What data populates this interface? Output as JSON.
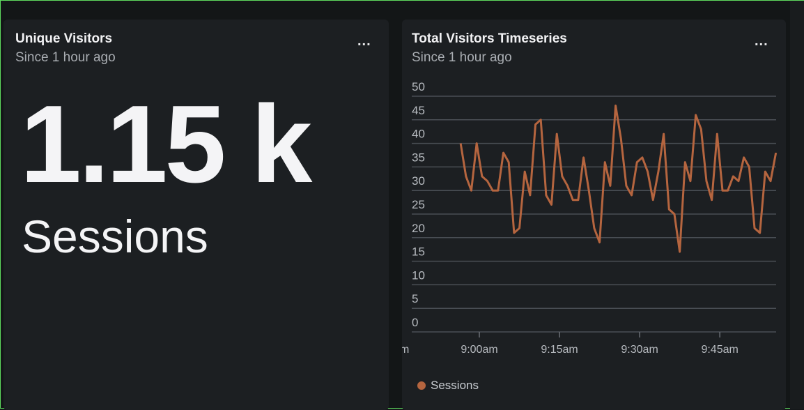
{
  "widgets": [
    {
      "title": "Unique Visitors",
      "subtitle": "Since 1 hour ago",
      "value": "1.15 k",
      "unit": "Sessions",
      "menu": "..."
    },
    {
      "title": "Total Visitors Timeseries",
      "subtitle": "Since 1 hour ago",
      "menu": "..."
    }
  ],
  "chart_data": {
    "type": "line",
    "title": "Total Visitors Timeseries",
    "ylim": [
      0,
      50
    ],
    "yticks": [
      "0",
      "5",
      "10",
      "15",
      "20",
      "25",
      "30",
      "35",
      "40",
      "45",
      "50"
    ],
    "xticks": [
      {
        "label": "m",
        "minute": -14
      },
      {
        "label": "9:00am",
        "minute": 0
      },
      {
        "label": "9:15am",
        "minute": 15
      },
      {
        "label": "9:30am",
        "minute": 30
      },
      {
        "label": "9:45am",
        "minute": 45
      }
    ],
    "x_start_minute": -3.5,
    "x_range_minutes": [
      -14,
      56.5
    ],
    "series": [
      {
        "name": "Sessions",
        "color": "#b5653f",
        "values": [
          40,
          33,
          30,
          40,
          33,
          32,
          30,
          30,
          38,
          36,
          21,
          22,
          34,
          29,
          44,
          45,
          29,
          27,
          42,
          33,
          31,
          28,
          28,
          37,
          30,
          22,
          19,
          36,
          31,
          48,
          41,
          31,
          29,
          36,
          37,
          34,
          28,
          34,
          42,
          26,
          25,
          17,
          36,
          32,
          46,
          43,
          32,
          28,
          42,
          30,
          30,
          33,
          32,
          37,
          35,
          22,
          21,
          34,
          32,
          38
        ]
      }
    ],
    "legend": "bottom-left"
  }
}
